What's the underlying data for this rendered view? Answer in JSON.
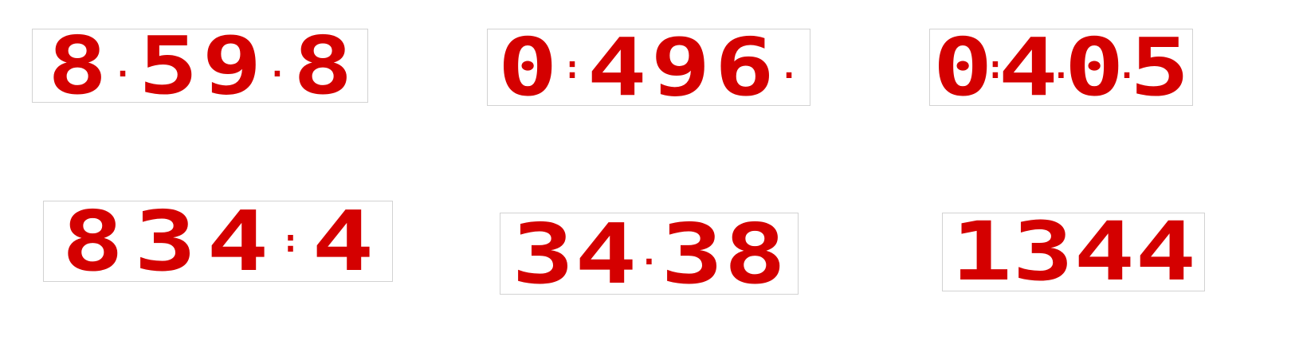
{
  "accent_color": "#d40000",
  "displays": [
    {
      "digits": [
        "8",
        ".",
        "5",
        "9",
        ".",
        "8"
      ]
    },
    {
      "digits": [
        "0",
        ":",
        "4",
        "9",
        "6",
        "."
      ]
    },
    {
      "digits": [
        "0",
        ":",
        "4",
        ".",
        "0",
        ".",
        "5"
      ]
    },
    {
      "digits": [
        "8",
        "3",
        "4",
        ":",
        "4"
      ]
    },
    {
      "digits": [
        "3",
        "4",
        ".",
        "3",
        "8"
      ]
    },
    {
      "digits": [
        "1",
        "3",
        "4",
        "4"
      ]
    }
  ]
}
